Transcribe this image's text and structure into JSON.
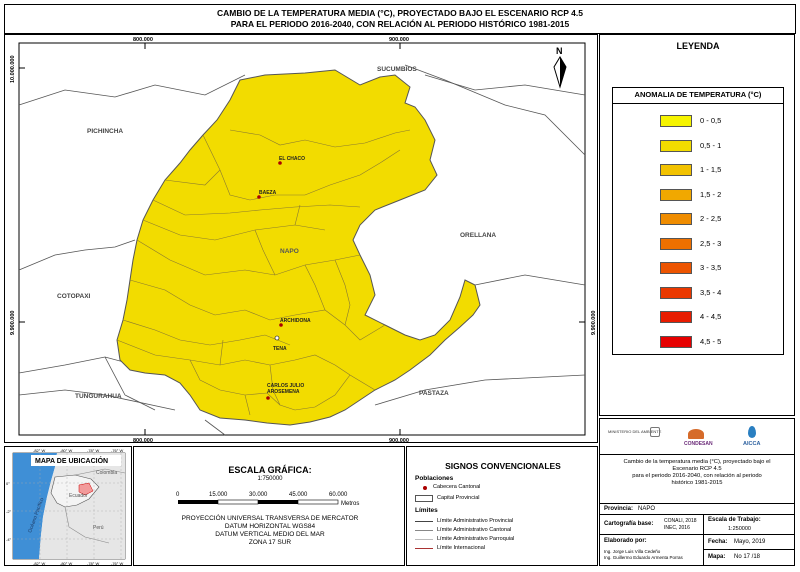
{
  "title": {
    "line1": "CAMBIO DE LA TEMPERATURA MEDIA (°C),  PROYECTADO BAJO EL ESCENARIO RCP 4.5",
    "line2": "PARA EL PERIODO 2016-2040, CON RELACIÓN AL PERIODO HISTÓRICO 1981-2015"
  },
  "map": {
    "fill_color": "#f2dc00",
    "coords": {
      "top_left_x": "800.000",
      "top_right_x": "900.000",
      "bottom_left_x": "800.000",
      "bottom_right_x": "900.000",
      "left_top_y": "10.000.000",
      "left_bottom_y": "9.900.000",
      "right_bottom_y": "9.900.000"
    },
    "regions": {
      "sucumbios": "SUCUMBIOS",
      "pichincha": "PICHINCHA",
      "orellana": "ORELLANA",
      "cotopaxi": "COTOPAXI",
      "tungurahua": "TUNGURAHUA",
      "pastaza": "PASTAZA",
      "napo": "NAPO"
    },
    "towns": {
      "el_chaco": "EL CHACO",
      "baeza": "BAEZA",
      "archidona": "ARCHIDONA",
      "tena": "TENA",
      "carlos_julio": "CARLOS JULIO",
      "arosemena": "AROSEMENA"
    },
    "north_label": "N"
  },
  "legend": {
    "title": "LEYENDA",
    "subtitle": "ANOMALIA DE TEMPERATURA (°C)",
    "items": [
      {
        "label": "0 - 0,5",
        "color": "#f6f400"
      },
      {
        "label": "0,5 - 1",
        "color": "#f2dc00"
      },
      {
        "label": "1 - 1,5",
        "color": "#f2c200"
      },
      {
        "label": "1,5 - 2",
        "color": "#f1a800"
      },
      {
        "label": "2 - 2,5",
        "color": "#ef8c00"
      },
      {
        "label": "2,5 - 3",
        "color": "#ee7000"
      },
      {
        "label": "3 - 3,5",
        "color": "#ec5400"
      },
      {
        "label": "3,5 - 4",
        "color": "#ea3800"
      },
      {
        "label": "4 - 4,5",
        "color": "#e81c00"
      },
      {
        "label": "4,5 - 5",
        "color": "#e60000"
      }
    ]
  },
  "location_map": {
    "title": "MAPA DE UBICACIÓN",
    "lon_ticks": [
      "-82° W",
      "-80° W",
      "-78° W",
      "-76° W"
    ],
    "lat_ticks": [
      "0°",
      "-2°",
      "-4°"
    ],
    "colombia": "Colombia",
    "ecuador": "Ecuador",
    "peru": "Perú",
    "ocean": "Océano Pacífico"
  },
  "scale": {
    "title": "ESCALA GRÁFICA:",
    "ratio": "1:750000",
    "ticks": [
      "0",
      "15.000",
      "30.000",
      "45.000",
      "60.000"
    ],
    "unit": "Metros",
    "projection1": "PROYECCIÓN UNIVERSAL TRANSVERSA DE MERCATOR",
    "projection2": "DATUM HORIZONTAL WGS84",
    "projection3": "DATUM VERTICAL MEDIO DEL MAR",
    "projection4": "ZONA 17 SUR"
  },
  "signs": {
    "title": "SIGNOS CONVENCIONALES",
    "populations": "Poblaciones",
    "cabecera": "Cabecera Cantonal",
    "capital": "Capital Provincial",
    "limits": "Límites",
    "lim_prov": "Límite Administrativo Provincial",
    "lim_cant": "Límite Administrativo Cantonal",
    "lim_parr": "Límite Administrativo Parroquial",
    "lim_int": "Límite Internacional"
  },
  "info": {
    "logos": {
      "ministerio": "MINISTERIO DEL AMBIENTE",
      "condesan": "CONDESAN",
      "aicca": "AICCA"
    },
    "description1": "Cambio de la temperatura media (°C),  proyectado bajo el",
    "description2": "Escenario RCP 4.5",
    "description3": "para el periodo 2016-2040, con relación al periodo",
    "description4": "histórico 1981-2015",
    "province_label": "Provincia:",
    "province_value": "NAPO",
    "cart_label": "Cartografía base:",
    "cart_value1": "CONALI, 2018",
    "cart_value2": "INEC, 2016",
    "scale_label": "Escala de Trabajo:",
    "scale_value": "1:250000",
    "elab_label": "Elaborado por:",
    "elab_value1": "Ing. Jorge Luis Villa Cedeño",
    "elab_value2": "Ing. Guillermo Eduardo Armenta Porras",
    "date_label": "Fecha:",
    "date_value": "Mayo, 2019",
    "map_label": "Mapa:",
    "map_value": "No 17 /18"
  }
}
